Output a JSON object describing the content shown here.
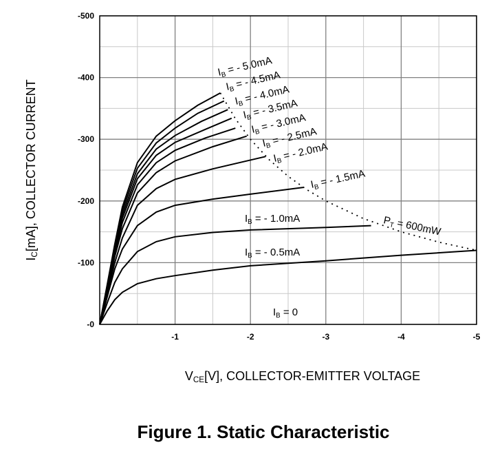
{
  "chart_data": {
    "type": "line",
    "title": "Figure 1. Static Characteristic",
    "x_label": "VCE[V], COLLECTOR-EMITTER VOLTAGE",
    "y_label": "IC[mA], COLLECTOR CURRENT",
    "xlim": [
      0,
      -5
    ],
    "ylim": [
      0,
      -500
    ],
    "xticks": [
      -1,
      -2,
      -3,
      -4,
      -5
    ],
    "yticks": [
      {
        "value": 0,
        "label": "-0"
      },
      -100,
      -200,
      -300,
      -400,
      -500
    ],
    "grid": true,
    "minor_grid": true,
    "annotations": [
      {
        "text": "IB = 0"
      }
    ],
    "series": [
      {
        "name": "IB = - 5.0mA",
        "color": "#000000",
        "x": [
          0,
          -0.1,
          -0.2,
          -0.3,
          -0.5,
          -0.75,
          -1,
          -1.3,
          -1.6
        ],
        "values": [
          0,
          -65,
          -130,
          -190,
          -262,
          -305,
          -330,
          -355,
          -375
        ]
      },
      {
        "name": "IB = - 4.5mA",
        "color": "#000000",
        "x": [
          0,
          -0.1,
          -0.2,
          -0.3,
          -0.5,
          -0.75,
          -1,
          -1.3,
          -1.65
        ],
        "values": [
          0,
          -63,
          -127,
          -184,
          -253,
          -294,
          -318,
          -342,
          -362
        ]
      },
      {
        "name": "IB = - 4.0mA",
        "color": "#000000",
        "x": [
          0,
          -0.1,
          -0.2,
          -0.3,
          -0.5,
          -0.75,
          -1,
          -1.35,
          -1.7
        ],
        "values": [
          0,
          -62,
          -124,
          -178,
          -244,
          -284,
          -306,
          -329,
          -348
        ]
      },
      {
        "name": "IB = - 3.5mA",
        "color": "#000000",
        "x": [
          0,
          -0.1,
          -0.2,
          -0.3,
          -0.5,
          -0.75,
          -1,
          -1.4,
          -1.75
        ],
        "values": [
          0,
          -60,
          -120,
          -172,
          -236,
          -274,
          -295,
          -316,
          -334
        ]
      },
      {
        "name": "IB = - 3.0mA",
        "color": "#000000",
        "x": [
          0,
          -0.1,
          -0.2,
          -0.3,
          -0.5,
          -0.75,
          -1,
          -1.4,
          -1.8
        ],
        "values": [
          0,
          -58,
          -115,
          -165,
          -226,
          -262,
          -282,
          -302,
          -318
        ]
      },
      {
        "name": "IB = - 2.5mA",
        "color": "#000000",
        "x": [
          0,
          -0.1,
          -0.2,
          -0.3,
          -0.5,
          -0.75,
          -1,
          -1.5,
          -1.95
        ],
        "values": [
          0,
          -55,
          -110,
          -155,
          -213,
          -246,
          -265,
          -288,
          -305
        ]
      },
      {
        "name": "IB = - 2.0mA",
        "color": "#000000",
        "x": [
          0,
          -0.1,
          -0.2,
          -0.3,
          -0.5,
          -0.75,
          -1,
          -1.5,
          -2.2
        ],
        "values": [
          0,
          -50,
          -100,
          -140,
          -193,
          -220,
          -235,
          -252,
          -272
        ]
      },
      {
        "name": "IB = - 1.5mA",
        "color": "#000000",
        "x": [
          0,
          -0.1,
          -0.2,
          -0.3,
          -0.5,
          -0.75,
          -1,
          -1.5,
          -2,
          -2.7
        ],
        "values": [
          0,
          -45,
          -90,
          -122,
          -160,
          -182,
          -193,
          -203,
          -211,
          -222
        ]
      },
      {
        "name": "IB = - 1.0mA",
        "color": "#000000",
        "x": [
          0,
          -0.1,
          -0.2,
          -0.3,
          -0.5,
          -0.75,
          -1,
          -1.5,
          -2,
          -3,
          -3.6
        ],
        "values": [
          0,
          -35,
          -68,
          -90,
          -118,
          -134,
          -142,
          -149,
          -153,
          -157,
          -160
        ]
      },
      {
        "name": "IB = - 0.5mA",
        "color": "#000000",
        "x": [
          0,
          -0.1,
          -0.2,
          -0.3,
          -0.5,
          -0.75,
          -1,
          -1.5,
          -2,
          -3,
          -4,
          -5
        ],
        "values": [
          0,
          -22,
          -40,
          -52,
          -66,
          -74,
          -79,
          -88,
          -95,
          -103,
          -112,
          -120
        ]
      },
      {
        "name": "PT = 600mW",
        "color": "#000000",
        "dash": "dotted",
        "x": [
          -1.6,
          -1.8,
          -2,
          -2.25,
          -2.5,
          -2.75,
          -3,
          -3.5,
          -4,
          -4.5,
          -5
        ],
        "values": [
          -375,
          -333.3,
          -300,
          -266.7,
          -240,
          -218.2,
          -200,
          -171.4,
          -150,
          -133.3,
          -120
        ]
      }
    ]
  }
}
